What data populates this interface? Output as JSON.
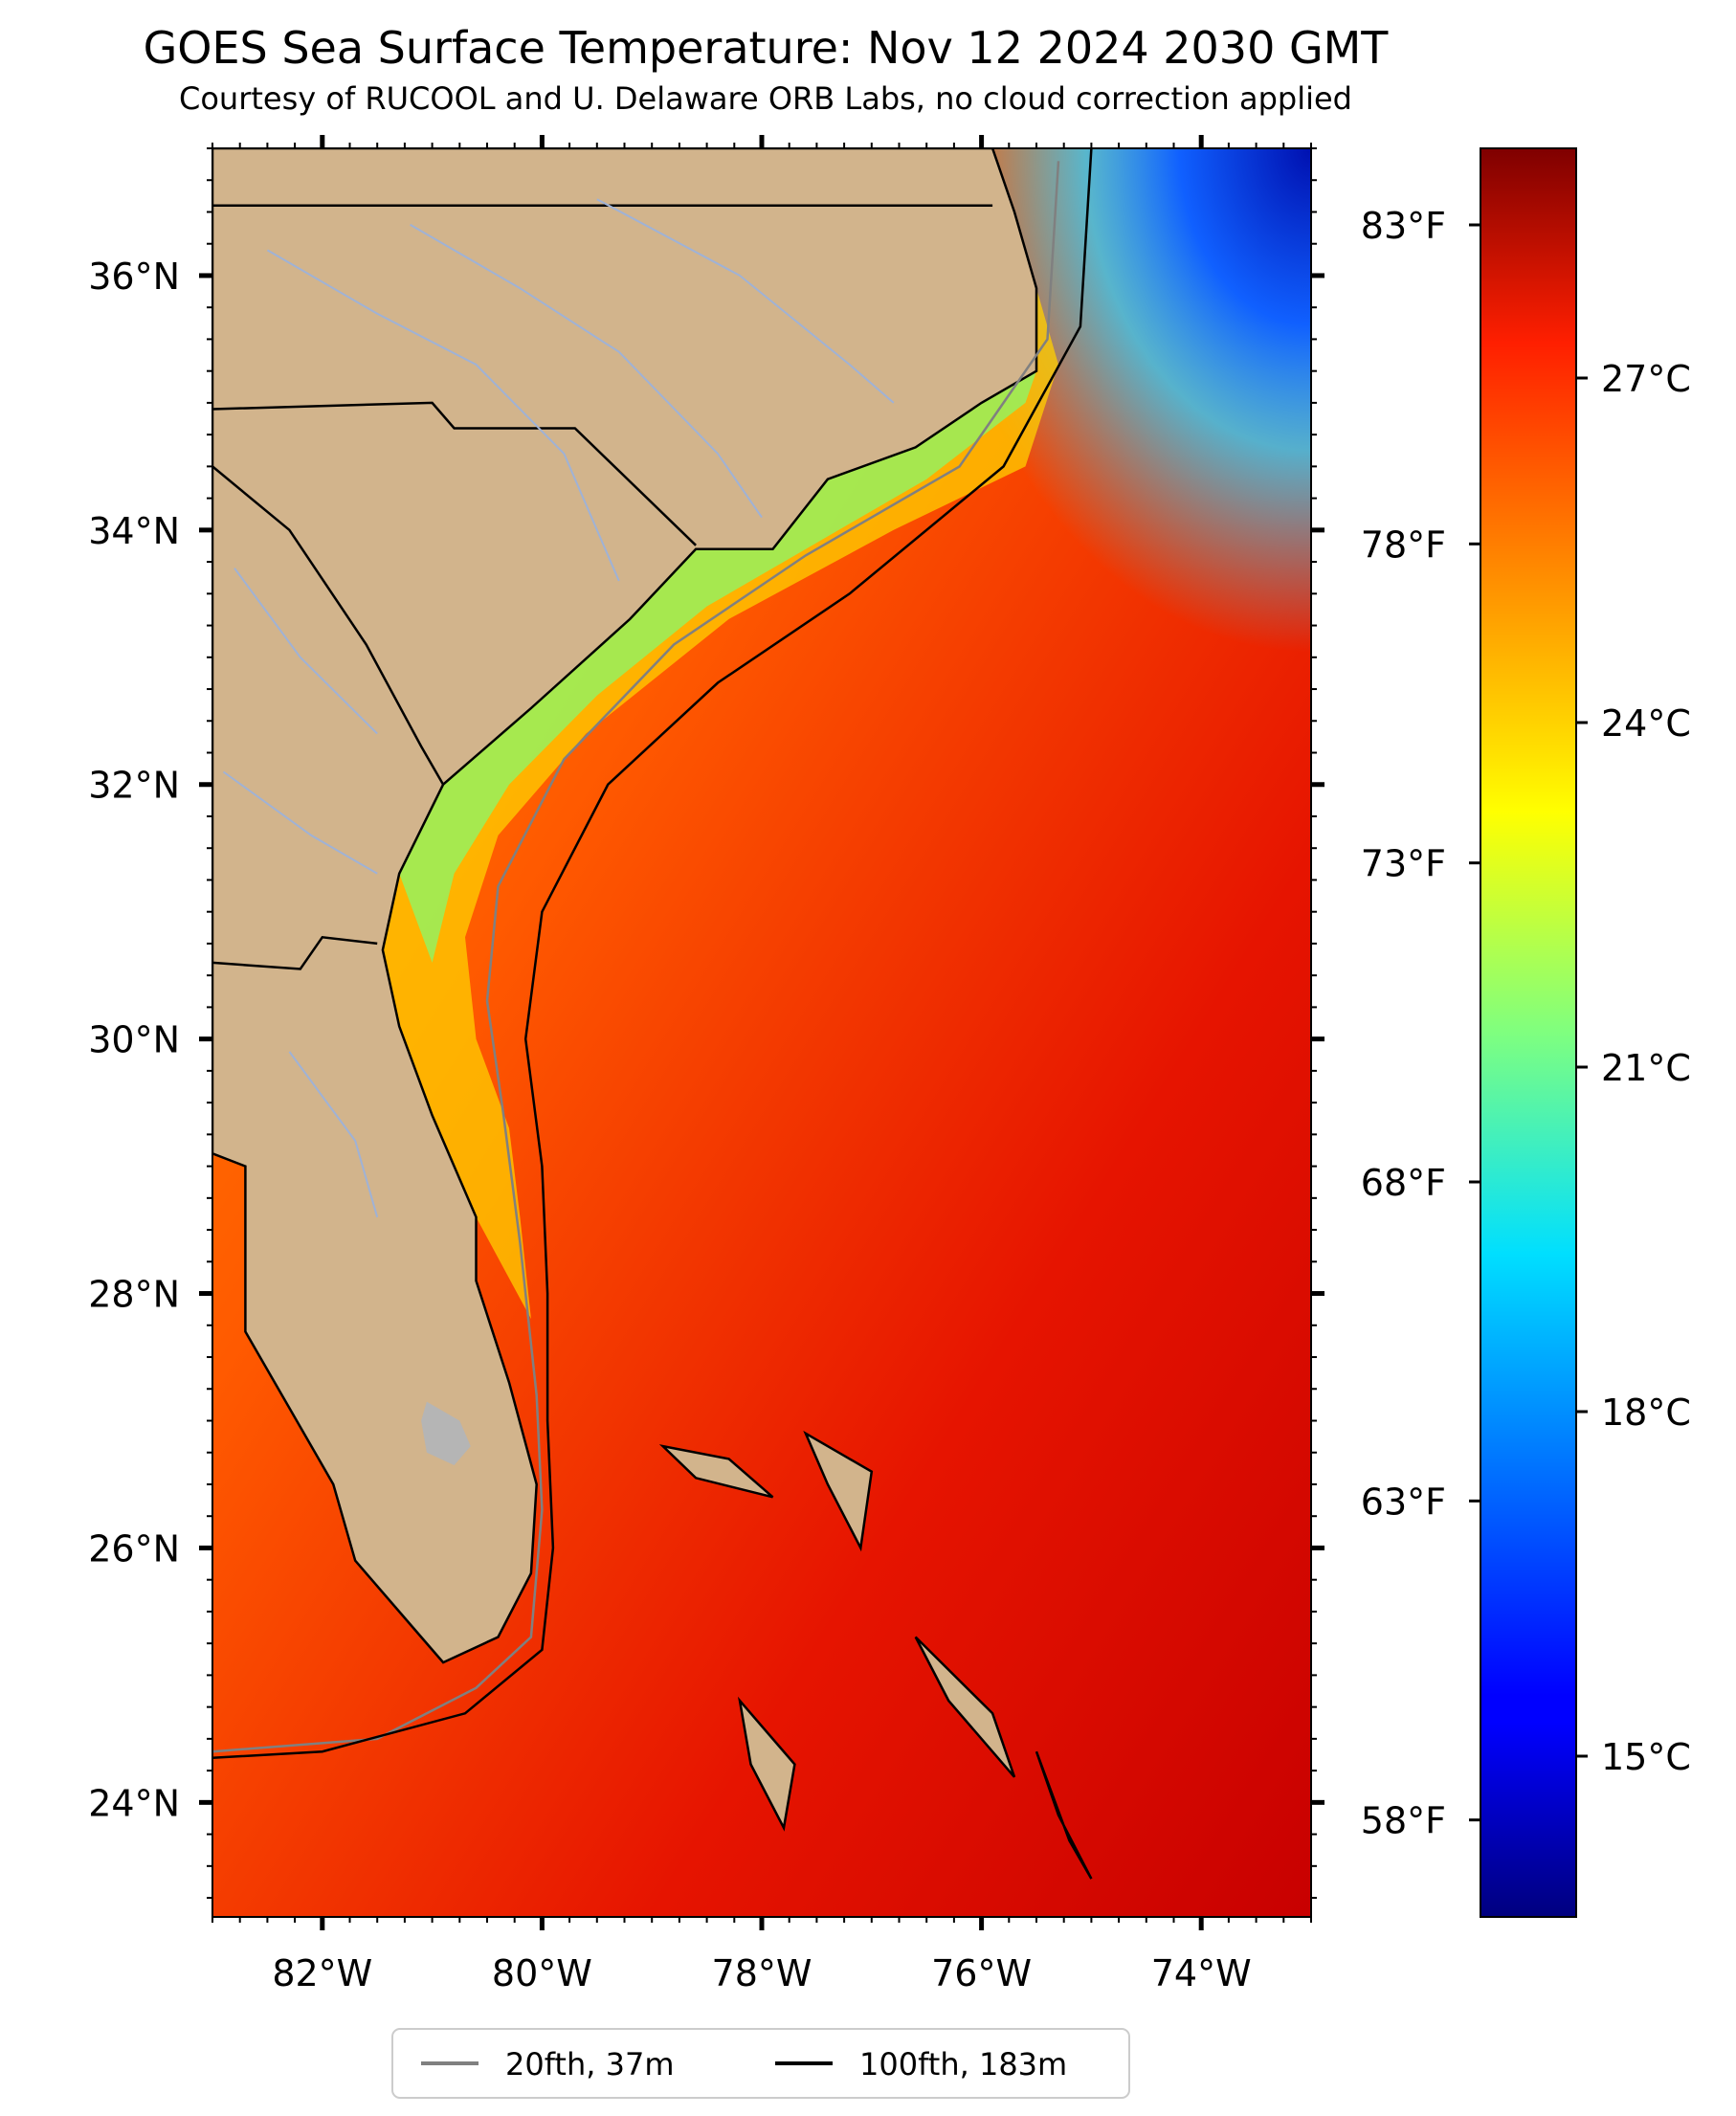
{
  "title": "GOES Sea Surface Temperature: Nov 12 2024 2030 GMT",
  "subtitle": "Courtesy of RUCOOL and U. Delaware ORB Labs, no cloud correction applied",
  "map": {
    "lon_range": [
      -83,
      -73
    ],
    "lat_range": [
      23.1,
      37.0
    ],
    "lon_ticks": [
      -82,
      -80,
      -78,
      -76,
      -74
    ],
    "lon_tick_labels": [
      "82°W",
      "80°W",
      "78°W",
      "76°W",
      "74°W"
    ],
    "lat_ticks": [
      24,
      26,
      28,
      30,
      32,
      34,
      36
    ],
    "lat_tick_labels": [
      "24°N",
      "26°N",
      "28°N",
      "30°N",
      "32°N",
      "34°N",
      "36°N"
    ],
    "colors": {
      "land": "#d2b48c",
      "lake": "#b5b5b5",
      "river": "#9fb2d6",
      "state_border": "#000000",
      "isobath_20fth": "#808080",
      "isobath_100fth": "#000000"
    }
  },
  "colorbar": {
    "colormap": "jet",
    "range_c": [
      13.6,
      29.0
    ],
    "celsius_ticks": [
      15,
      18,
      21,
      24,
      27
    ],
    "celsius_labels": [
      "15°C",
      "18°C",
      "21°C",
      "24°C",
      "27°C"
    ],
    "fahrenheit_ticks": [
      58,
      63,
      68,
      73,
      78,
      83
    ],
    "fahrenheit_labels": [
      "58°F",
      "63°F",
      "68°F",
      "73°F",
      "78°F",
      "83°F"
    ]
  },
  "legend": {
    "items": [
      {
        "label": "20fth, 37m",
        "color": "#808080"
      },
      {
        "label": "100fth, 183m",
        "color": "#000000"
      }
    ]
  }
}
